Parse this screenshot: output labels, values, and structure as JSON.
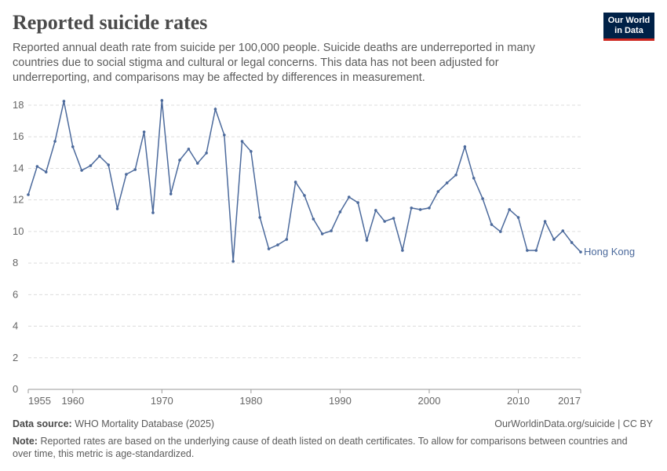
{
  "header": {
    "title": "Reported suicide rates",
    "subtitle": "Reported annual death rate from suicide per 100,000 people. Suicide deaths are underreported in many countries due to social stigma and cultural or legal concerns. This data has not been adjusted for underreporting, and comparisons may be affected by differences in measurement.",
    "logo": [
      "Our World",
      "in Data"
    ]
  },
  "chart_data": {
    "type": "line",
    "x": [
      1955,
      1956,
      1957,
      1958,
      1959,
      1960,
      1961,
      1962,
      1963,
      1964,
      1965,
      1966,
      1967,
      1968,
      1969,
      1970,
      1971,
      1972,
      1973,
      1974,
      1975,
      1976,
      1977,
      1978,
      1979,
      1980,
      1981,
      1982,
      1983,
      1984,
      1985,
      1986,
      1987,
      1988,
      1989,
      1990,
      1991,
      1992,
      1993,
      1994,
      1995,
      1996,
      1997,
      1998,
      1999,
      2000,
      2001,
      2002,
      2003,
      2004,
      2005,
      2006,
      2007,
      2008,
      2009,
      2010,
      2011,
      2012,
      2013,
      2014,
      2015,
      2016,
      2017
    ],
    "series": [
      {
        "name": "Hong Kong",
        "color": "#4c6a9c",
        "values": [
          12.33,
          14.12,
          13.77,
          15.71,
          18.25,
          15.37,
          13.87,
          14.17,
          14.77,
          14.22,
          11.44,
          13.62,
          13.92,
          16.31,
          11.19,
          18.3,
          12.38,
          14.52,
          15.22,
          14.32,
          14.97,
          17.75,
          16.11,
          8.11,
          15.71,
          15.07,
          10.89,
          8.9,
          9.15,
          9.5,
          13.13,
          12.28,
          10.79,
          9.85,
          10.04,
          11.24,
          12.18,
          11.83,
          9.45,
          11.34,
          10.64,
          10.84,
          8.8,
          11.49,
          11.39,
          11.49,
          12.53,
          13.08,
          13.58,
          15.37,
          13.38,
          12.08,
          10.44,
          9.99,
          11.39,
          10.89,
          8.8,
          8.8,
          10.64,
          9.5,
          10.04,
          9.3,
          8.7
        ]
      }
    ],
    "xlim": [
      1955,
      2017
    ],
    "xticks": [
      1955,
      1960,
      1970,
      1980,
      1990,
      2000,
      2010,
      2017
    ],
    "ylim": [
      0,
      18
    ],
    "yticks": [
      0,
      2,
      4,
      6,
      8,
      10,
      12,
      14,
      16,
      18
    ],
    "grid": true
  },
  "footer": {
    "source_label": "Data source:",
    "source": "WHO Mortality Database (2025)",
    "url": "OurWorldinData.org/suicide | CC BY",
    "note_label": "Note:",
    "note": "Reported rates are based on the underlying cause of death listed on death certificates. To allow for comparisons between countries and over time, this metric is age-standardized."
  }
}
